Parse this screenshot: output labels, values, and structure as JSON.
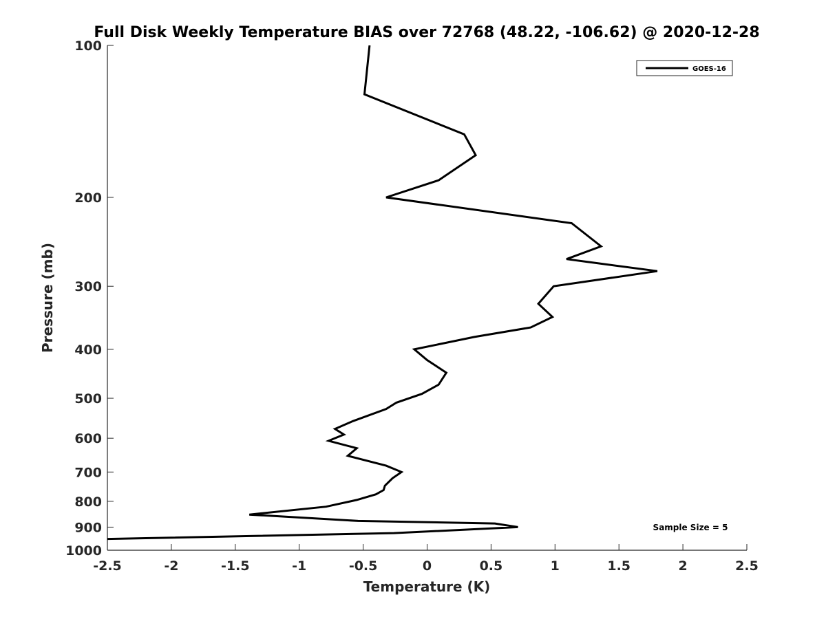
{
  "chart_data": {
    "type": "line",
    "title": "Full Disk Weekly Temperature BIAS over 72768 (48.22, -106.62) @ 2020-12-28",
    "xlabel": "Temperature (K)",
    "ylabel": "Pressure (mb)",
    "xlim": [
      -2.5,
      2.5
    ],
    "ylim": [
      100,
      1000
    ],
    "y_scale": "log",
    "y_reversed": true,
    "grid": false,
    "legend_position": "top-right",
    "x_ticks": [
      "-2.5",
      "-2",
      "-1.5",
      "-1",
      "-0.5",
      "0",
      "0.5",
      "1",
      "1.5",
      "2",
      "2.5"
    ],
    "x_tick_values": [
      -2.5,
      -2,
      -1.5,
      -1,
      -0.5,
      0,
      0.5,
      1,
      1.5,
      2,
      2.5
    ],
    "y_ticks": [
      "100",
      "200",
      "300",
      "400",
      "500",
      "600",
      "700",
      "800",
      "900",
      "1000"
    ],
    "y_tick_values": [
      100,
      200,
      300,
      400,
      500,
      600,
      700,
      800,
      900,
      1000
    ],
    "series": [
      {
        "name": "GOES-16",
        "color": "#000000",
        "x": [
          -0.45,
          -0.49,
          0.29,
          0.38,
          0.09,
          -0.32,
          1.13,
          1.36,
          1.09,
          1.8,
          0.99,
          0.87,
          0.98,
          0.81,
          0.37,
          -0.1,
          0.0,
          0.15,
          0.09,
          -0.04,
          -0.24,
          -0.32,
          -0.58,
          -0.72,
          -0.65,
          -0.77,
          -0.55,
          -0.62,
          -0.32,
          -0.2,
          -0.27,
          -0.33,
          -0.34,
          -0.4,
          -0.55,
          -0.79,
          -1.39,
          -0.54,
          0.53,
          0.71,
          -0.26,
          -2.5
        ],
        "y": [
          100,
          125,
          150,
          165,
          185,
          200,
          225,
          250,
          265,
          280,
          300,
          325,
          345,
          362,
          378,
          400,
          420,
          445,
          470,
          490,
          510,
          525,
          555,
          575,
          590,
          607,
          628,
          650,
          680,
          700,
          720,
          745,
          760,
          775,
          795,
          820,
          850,
          875,
          885,
          900,
          925,
          950
        ]
      }
    ],
    "legend": [
      "GOES-16"
    ],
    "annotations": [
      "Sample Size = 5"
    ]
  }
}
